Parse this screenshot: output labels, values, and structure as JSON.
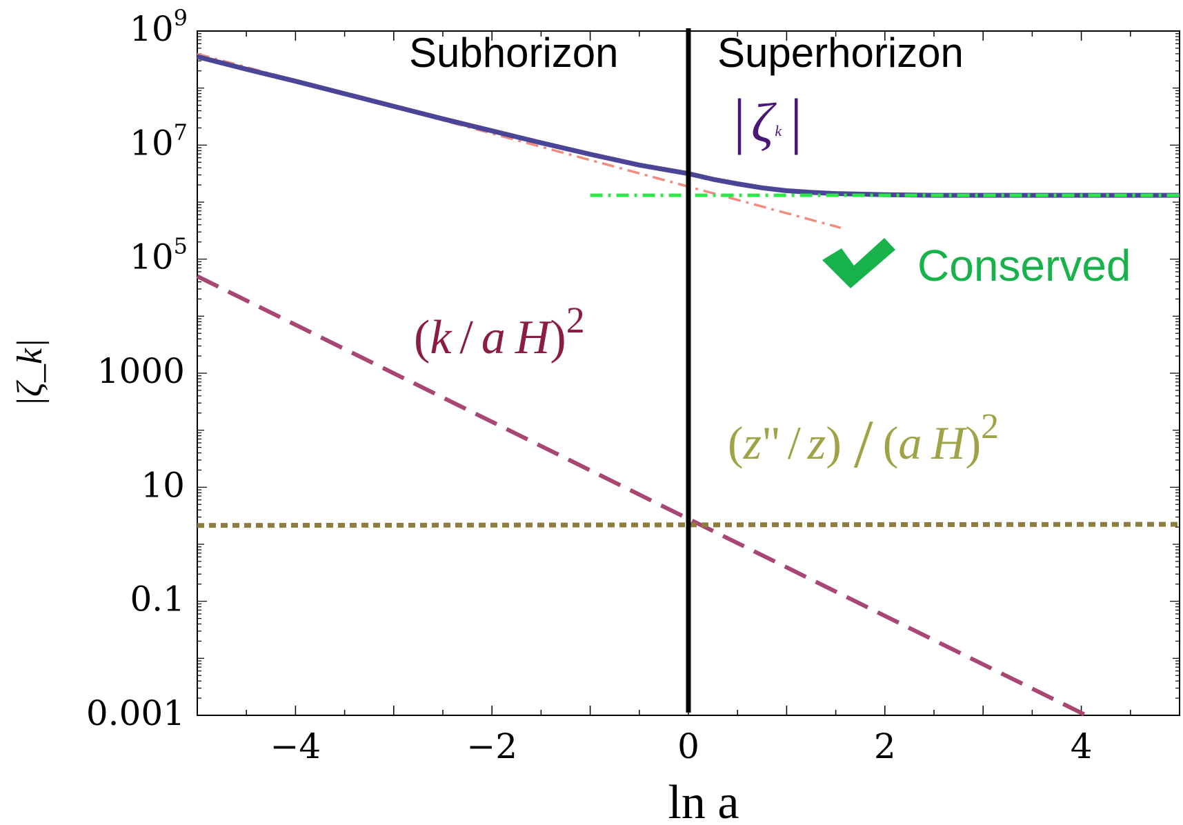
{
  "chart_data": {
    "type": "line",
    "title": "",
    "xlabel": "ln a",
    "ylabel": "|ζ_k|",
    "xlim": [
      -5,
      5
    ],
    "ylim_log10": [
      -3,
      9
    ],
    "y_scale": "log",
    "grid": false,
    "x_ticks": [
      -4,
      -2,
      0,
      2,
      4
    ],
    "x_tick_labels": [
      "−4",
      "−2",
      "0",
      "2",
      "4"
    ],
    "y_tick_exponents": [
      9,
      7,
      5,
      3,
      1,
      -1,
      -3
    ],
    "y_tick_labels": [
      {
        "base": "10",
        "exp": "9"
      },
      {
        "base": "10",
        "exp": "7"
      },
      {
        "base": "10",
        "exp": "5"
      },
      {
        "base": "1000",
        "exp": ""
      },
      {
        "base": "10",
        "exp": ""
      },
      {
        "base": "0.1",
        "exp": ""
      },
      {
        "base": "0.001",
        "exp": ""
      }
    ],
    "regions": {
      "left": "Subhorizon",
      "right": "Superhorizon",
      "boundary_x": 0
    },
    "series": [
      {
        "role": "zeta-solid",
        "color": "#4a4596",
        "style": "solid",
        "x": [
          -5,
          -4.5,
          -4,
          -3.5,
          -3,
          -2.5,
          -2,
          -1.5,
          -1,
          -0.5,
          0,
          0.25,
          0.5,
          0.75,
          1,
          1.25,
          1.5,
          2,
          2.5,
          3,
          3.5,
          4,
          4.5,
          5
        ],
        "log10_y": [
          8.55,
          8.33,
          8.12,
          7.9,
          7.68,
          7.46,
          7.25,
          7.04,
          6.84,
          6.65,
          6.5,
          6.4,
          6.32,
          6.25,
          6.2,
          6.17,
          6.15,
          6.13,
          6.12,
          6.12,
          6.12,
          6.12,
          6.12,
          6.12
        ]
      },
      {
        "role": "subhorizon-asymptote",
        "color": "#f28b7f",
        "style": "dashdot",
        "x": [
          -5,
          1.55
        ],
        "log10_y": [
          8.6,
          5.55
        ]
      },
      {
        "role": "conserved-level",
        "color": "#2ee64a",
        "style": "dashdot",
        "x": [
          -1,
          5
        ],
        "log10_y": [
          6.12,
          6.12
        ]
      },
      {
        "role": "k-over-aH-squared",
        "color": "#a84774",
        "style": "dashed",
        "x": [
          -5,
          4.05
        ],
        "log10_y": [
          4.7,
          -3
        ]
      },
      {
        "role": "zpp-over-z",
        "color": "#8f7d3f",
        "style": "dotted",
        "x": [
          -5,
          5
        ],
        "log10_y": [
          0.33,
          0.35
        ]
      }
    ],
    "annotations": {
      "zeta_label": {
        "bar": "|",
        "symbol": "ζ",
        "sub": "k",
        "color": "#4b1775"
      },
      "k_label": {
        "open": "(",
        "k": "k",
        "slash": "/",
        "a": "a",
        "H": "H",
        "close": ")",
        "exp": "2",
        "color": "#8b1d42"
      },
      "z_label": {
        "open1": "(",
        "z1": "z",
        "dq": "\"",
        "slash1": "/",
        "z2": "z",
        "close1": ")",
        "open2": "(",
        "a": "a",
        "H": "H",
        "close2": ")",
        "exp": "2",
        "color": "#9ea346"
      },
      "conserved": {
        "text": "Conserved",
        "color": "#17b24a"
      }
    }
  }
}
